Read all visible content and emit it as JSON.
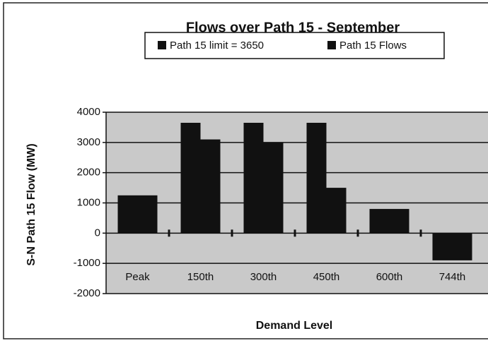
{
  "chart_data": {
    "type": "bar",
    "title": "Flows over Path 15 - September",
    "x_label": "Demand Level",
    "y_label": "S-N Path 15 Flow (MW)",
    "categories": [
      "Peak",
      "150th",
      "300th",
      "450th",
      "600th",
      "744th"
    ],
    "series": [
      {
        "name": "Path 15 limit = 3650",
        "color": "#111111",
        "values": [
          1250,
          3650,
          3650,
          3650,
          800,
          -900
        ]
      },
      {
        "name": "Path 15 Flows",
        "color": "#111111",
        "values": [
          1250,
          3100,
          3000,
          1500,
          800,
          -900
        ]
      }
    ],
    "ylim": [
      -2000,
      4000
    ],
    "yticks": [
      -2000,
      -1000,
      0,
      1000,
      2000,
      3000,
      4000
    ],
    "grid": true,
    "legend": "top"
  }
}
